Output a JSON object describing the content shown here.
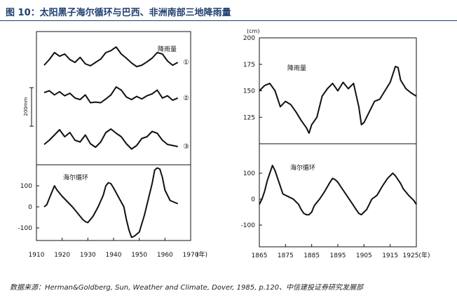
{
  "figure": {
    "title": "图 10：太阳黑子海尔循环与巴西、非洲南部三地降雨量",
    "source": "数据来源：Herman&Goldberg, Sun, Weather and Climate, Dover, 1985, p.120、中信建投证券研究发展部"
  },
  "chart_data": [
    {
      "type": "line",
      "panel": "left-top",
      "ylabel": "200mm",
      "annotation": "降雨量",
      "series": [
        {
          "name": "①",
          "x": [
            1913,
            1915,
            1917,
            1919,
            1921,
            1923,
            1925,
            1927,
            1929,
            1931,
            1933,
            1935,
            1937,
            1939,
            1941,
            1943,
            1945,
            1947,
            1949,
            1951,
            1953,
            1955,
            1957,
            1959,
            1961,
            1963,
            1965
          ],
          "y": [
            0.3,
            0.5,
            0.75,
            0.62,
            0.7,
            0.5,
            0.4,
            0.58,
            0.35,
            0.28,
            0.4,
            0.52,
            0.75,
            0.82,
            0.95,
            0.7,
            0.55,
            0.38,
            0.25,
            0.3,
            0.42,
            0.55,
            0.75,
            0.7,
            0.45,
            0.3,
            0.4
          ]
        },
        {
          "name": "②",
          "x": [
            1913,
            1915,
            1917,
            1919,
            1921,
            1923,
            1925,
            1927,
            1929,
            1931,
            1933,
            1935,
            1937,
            1939,
            1941,
            1943,
            1945,
            1947,
            1949,
            1951,
            1953,
            1955,
            1957,
            1959,
            1961,
            1963,
            1965
          ],
          "y": [
            0.62,
            0.68,
            0.55,
            0.65,
            0.52,
            0.6,
            0.45,
            0.4,
            0.55,
            0.3,
            0.32,
            0.3,
            0.42,
            0.55,
            0.8,
            0.7,
            0.48,
            0.4,
            0.5,
            0.42,
            0.52,
            0.58,
            0.7,
            0.45,
            0.52,
            0.38,
            0.45
          ]
        },
        {
          "name": "③",
          "x": [
            1913,
            1915,
            1917,
            1919,
            1921,
            1923,
            1925,
            1927,
            1929,
            1931,
            1933,
            1935,
            1937,
            1939,
            1941,
            1943,
            1945,
            1947,
            1949,
            1951,
            1953,
            1955,
            1957,
            1959,
            1961,
            1963,
            1965
          ],
          "y": [
            0.28,
            0.4,
            0.55,
            0.7,
            0.5,
            0.62,
            0.4,
            0.35,
            0.55,
            0.3,
            0.2,
            0.35,
            0.62,
            0.72,
            0.6,
            0.5,
            0.3,
            0.15,
            0.25,
            0.45,
            0.5,
            0.65,
            0.6,
            0.4,
            0.28,
            0.25,
            0.22
          ]
        }
      ]
    },
    {
      "type": "line",
      "panel": "left-bottom",
      "annotation": "海尔循环",
      "yticks": [
        100,
        0,
        -100
      ],
      "xticks": [
        1910,
        1920,
        1930,
        1940,
        1950,
        1960,
        1970
      ],
      "xunit": "(年)",
      "ylim": [
        -150,
        150
      ],
      "series": [
        {
          "name": "海尔循环",
          "x": [
            1913,
            1914,
            1915,
            1916,
            1917,
            1918,
            1920,
            1922,
            1924,
            1926,
            1928,
            1929,
            1930,
            1932,
            1934,
            1936,
            1937,
            1938,
            1939,
            1940,
            1942,
            1944,
            1945,
            1946,
            1947,
            1948,
            1950,
            1952,
            1954,
            1955,
            1956,
            1957,
            1958,
            1959,
            1960,
            1962,
            1964,
            1965
          ],
          "y": [
            0,
            10,
            40,
            70,
            100,
            80,
            50,
            25,
            0,
            -30,
            -60,
            -70,
            -75,
            -45,
            0,
            55,
            100,
            115,
            110,
            90,
            45,
            0,
            -60,
            -110,
            -145,
            -140,
            -120,
            -40,
            60,
            110,
            175,
            185,
            180,
            140,
            80,
            30,
            20,
            15
          ]
        }
      ]
    },
    {
      "type": "line",
      "panel": "right-top",
      "ylabel": "(cm)",
      "annotation": "降雨量",
      "yticks": [
        200,
        175,
        150,
        125
      ],
      "ylim": [
        100,
        200
      ],
      "series": [
        {
          "name": "降雨量",
          "x": [
            1865,
            1867,
            1869,
            1871,
            1873,
            1875,
            1877,
            1879,
            1881,
            1883,
            1884,
            1885,
            1887,
            1889,
            1891,
            1893,
            1895,
            1897,
            1899,
            1901,
            1903,
            1904,
            1905,
            1907,
            1909,
            1911,
            1913,
            1915,
            1917,
            1918,
            1919,
            1921,
            1923,
            1925
          ],
          "y": [
            150,
            155,
            157,
            150,
            135,
            140,
            137,
            130,
            122,
            115,
            110,
            118,
            125,
            145,
            152,
            157,
            150,
            158,
            152,
            157,
            135,
            118,
            120,
            130,
            140,
            142,
            150,
            158,
            173,
            172,
            160,
            152,
            148,
            145
          ]
        }
      ]
    },
    {
      "type": "line",
      "panel": "right-bottom",
      "annotation": "海尔循环",
      "yticks": [
        100,
        0,
        -100
      ],
      "xticks": [
        1865,
        1875,
        1885,
        1895,
        1905,
        1915,
        "1925(年)"
      ],
      "ylim": [
        -150,
        150
      ],
      "series": [
        {
          "name": "海尔循环",
          "x": [
            1865,
            1866,
            1867,
            1868,
            1869,
            1870,
            1871,
            1872,
            1873,
            1874,
            1876,
            1878,
            1880,
            1881,
            1882,
            1883,
            1884,
            1885,
            1886,
            1888,
            1890,
            1892,
            1893,
            1894,
            1895,
            1896,
            1898,
            1900,
            1902,
            1903,
            1904,
            1905,
            1906,
            1907,
            1908,
            1910,
            1912,
            1914,
            1916,
            1917,
            1918,
            1919,
            1920,
            1922,
            1924,
            1925
          ],
          "y": [
            -20,
            0,
            30,
            70,
            100,
            130,
            110,
            80,
            50,
            20,
            10,
            0,
            -20,
            -40,
            -55,
            -60,
            -60,
            -50,
            -25,
            0,
            30,
            65,
            80,
            75,
            65,
            50,
            20,
            -10,
            -40,
            -55,
            -60,
            -50,
            -40,
            -20,
            0,
            15,
            50,
            80,
            100,
            90,
            75,
            60,
            40,
            15,
            -5,
            -20
          ]
        }
      ]
    }
  ]
}
